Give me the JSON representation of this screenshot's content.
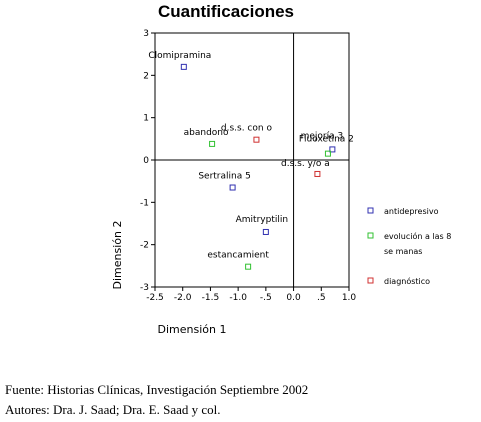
{
  "chart_data": {
    "type": "scatter",
    "title": "Cuantificaciones",
    "xlabel": "Dimensión 1",
    "ylabel": "Dimensión 2",
    "xlim": [
      -2.5,
      1.0
    ],
    "ylim": [
      -3,
      3
    ],
    "x_tick_labels": [
      "-2.5",
      "-2.0",
      "-1.5",
      "-1.0",
      "-.5",
      "0.0",
      ".5",
      "1.0"
    ],
    "y_tick_labels": [
      "3",
      "2",
      "1",
      "0",
      "-1",
      "-2",
      "-3"
    ],
    "series": [
      {
        "name": "antidepresivo",
        "color": "#3030b0",
        "points": [
          {
            "label": "Clomipramina",
            "x": -1.98,
            "y": 2.2
          },
          {
            "label": "Fluoxetina 2",
            "x": 0.7,
            "y": 0.25
          },
          {
            "label": "Sertralina 5",
            "x": -1.1,
            "y": -0.65
          },
          {
            "label": "Amitryptilin",
            "x": -0.5,
            "y": -1.7
          }
        ]
      },
      {
        "name": "evolución a las 8 se manas",
        "color": "#30c030",
        "points": [
          {
            "label": "abandono",
            "x": -1.47,
            "y": 0.38
          },
          {
            "label": "mejoría 3",
            "x": 0.62,
            "y": 0.15
          },
          {
            "label": "estancamient",
            "x": -0.82,
            "y": -2.52
          }
        ]
      },
      {
        "name": "diagnóstico",
        "color": "#d03030",
        "points": [
          {
            "label": "d.s.s. con o",
            "x": -0.67,
            "y": 0.48
          },
          {
            "label": "d.s.s. y/o a",
            "x": 0.43,
            "y": -0.33
          }
        ]
      }
    ],
    "legend_position": "right"
  },
  "footer": {
    "line1": "Fuente: Historias Clínicas, Investigación Septiembre 2002",
    "line2": "Autores: Dra. J. Saad; Dra. E. Saad y col."
  }
}
